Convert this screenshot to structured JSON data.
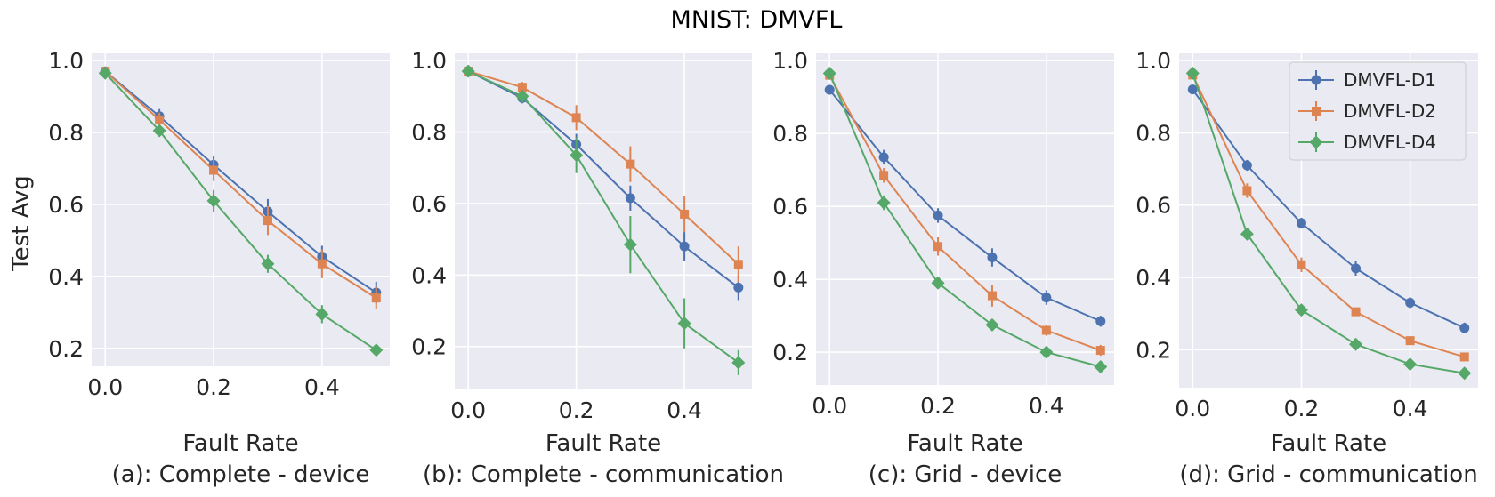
{
  "figure_title": "MNIST: DMVFL",
  "ylabel": "Test Avg",
  "colors": {
    "background": "#ffffff",
    "axes_face": "#eaeaf2",
    "grid": "#ffffff",
    "DMVFL-D1": "#4c72b0",
    "DMVFL-D2": "#dd8452",
    "DMVFL-D4": "#55a868"
  },
  "legend": [
    {
      "name": "DMVFL-D1",
      "marker": "circle"
    },
    {
      "name": "DMVFL-D2",
      "marker": "square"
    },
    {
      "name": "DMVFL-D4",
      "marker": "diamond"
    }
  ],
  "chart_data": [
    {
      "type": "line",
      "subtitle": "(a): Complete - device",
      "xlabel": "Fault Rate",
      "ylabel": "Test Avg",
      "x": [
        0.0,
        0.1,
        0.2,
        0.3,
        0.4,
        0.5
      ],
      "xticks": [
        "0.0",
        "0.2",
        "0.4"
      ],
      "yticks": [
        "0.2",
        "0.4",
        "0.6",
        "0.8",
        "1.0"
      ],
      "xlim": [
        -0.025,
        0.525
      ],
      "ylim": [
        0.15,
        1.02
      ],
      "series": [
        {
          "name": "DMVFL-D1",
          "values": [
            0.97,
            0.845,
            0.71,
            0.58,
            0.455,
            0.355
          ],
          "err": [
            0.01,
            0.02,
            0.025,
            0.035,
            0.03,
            0.03
          ]
        },
        {
          "name": "DMVFL-D2",
          "values": [
            0.97,
            0.835,
            0.695,
            0.555,
            0.435,
            0.34
          ],
          "err": [
            0.01,
            0.02,
            0.03,
            0.04,
            0.04,
            0.03
          ]
        },
        {
          "name": "DMVFL-D4",
          "values": [
            0.965,
            0.805,
            0.61,
            0.435,
            0.295,
            0.195
          ],
          "err": [
            0.01,
            0.015,
            0.03,
            0.025,
            0.025,
            0.015
          ]
        }
      ]
    },
    {
      "type": "line",
      "subtitle": "(b): Complete - communication",
      "xlabel": "Fault Rate",
      "ylabel": "",
      "x": [
        0.0,
        0.1,
        0.2,
        0.3,
        0.4,
        0.5
      ],
      "xticks": [
        "0.0",
        "0.2",
        "0.4"
      ],
      "yticks": [
        "0.2",
        "0.4",
        "0.6",
        "0.8",
        "1.0"
      ],
      "xlim": [
        -0.025,
        0.525
      ],
      "ylim": [
        0.08,
        1.02
      ],
      "series": [
        {
          "name": "DMVFL-D1",
          "values": [
            0.97,
            0.895,
            0.765,
            0.615,
            0.48,
            0.365
          ],
          "err": [
            0.01,
            0.015,
            0.03,
            0.035,
            0.04,
            0.035
          ]
        },
        {
          "name": "DMVFL-D2",
          "values": [
            0.97,
            0.925,
            0.84,
            0.71,
            0.57,
            0.43
          ],
          "err": [
            0.01,
            0.015,
            0.035,
            0.05,
            0.05,
            0.05
          ]
        },
        {
          "name": "DMVFL-D4",
          "values": [
            0.97,
            0.9,
            0.735,
            0.485,
            0.265,
            0.155
          ],
          "err": [
            0.01,
            0.015,
            0.05,
            0.08,
            0.07,
            0.035
          ]
        }
      ]
    },
    {
      "type": "line",
      "subtitle": "(c): Grid - device",
      "xlabel": "Fault Rate",
      "ylabel": "",
      "x": [
        0.0,
        0.1,
        0.2,
        0.3,
        0.4,
        0.5
      ],
      "xticks": [
        "0.0",
        "0.2",
        "0.4"
      ],
      "yticks": [
        "0.2",
        "0.4",
        "0.6",
        "0.8",
        "1.0"
      ],
      "xlim": [
        -0.025,
        0.525
      ],
      "ylim": [
        0.11,
        1.02
      ],
      "series": [
        {
          "name": "DMVFL-D1",
          "values": [
            0.92,
            0.735,
            0.575,
            0.46,
            0.35,
            0.285
          ],
          "err": [
            0.01,
            0.02,
            0.02,
            0.025,
            0.02,
            0.015
          ]
        },
        {
          "name": "DMVFL-D2",
          "values": [
            0.96,
            0.685,
            0.49,
            0.355,
            0.26,
            0.205
          ],
          "err": [
            0.01,
            0.02,
            0.025,
            0.03,
            0.015,
            0.015
          ]
        },
        {
          "name": "DMVFL-D4",
          "values": [
            0.965,
            0.61,
            0.39,
            0.275,
            0.2,
            0.16
          ],
          "err": [
            0.01,
            0.02,
            0.015,
            0.015,
            0.01,
            0.01
          ]
        }
      ]
    },
    {
      "type": "line",
      "subtitle": "(d): Grid - communication",
      "xlabel": "Fault Rate",
      "ylabel": "",
      "x": [
        0.0,
        0.1,
        0.2,
        0.3,
        0.4,
        0.5
      ],
      "xticks": [
        "0.0",
        "0.2",
        "0.4"
      ],
      "yticks": [
        "0.2",
        "0.4",
        "0.6",
        "0.8",
        "1.0"
      ],
      "xlim": [
        -0.025,
        0.525
      ],
      "ylim": [
        0.095,
        1.02
      ],
      "legend": "top-right",
      "series": [
        {
          "name": "DMVFL-D1",
          "values": [
            0.92,
            0.71,
            0.55,
            0.425,
            0.33,
            0.26
          ],
          "err": [
            0.01,
            0.015,
            0.015,
            0.02,
            0.015,
            0.015
          ]
        },
        {
          "name": "DMVFL-D2",
          "values": [
            0.96,
            0.64,
            0.435,
            0.305,
            0.225,
            0.18
          ],
          "err": [
            0.01,
            0.02,
            0.02,
            0.01,
            0.01,
            0.01
          ]
        },
        {
          "name": "DMVFL-D4",
          "values": [
            0.965,
            0.52,
            0.31,
            0.215,
            0.16,
            0.135
          ],
          "err": [
            0.01,
            0.015,
            0.01,
            0.01,
            0.01,
            0.01
          ]
        }
      ]
    }
  ]
}
